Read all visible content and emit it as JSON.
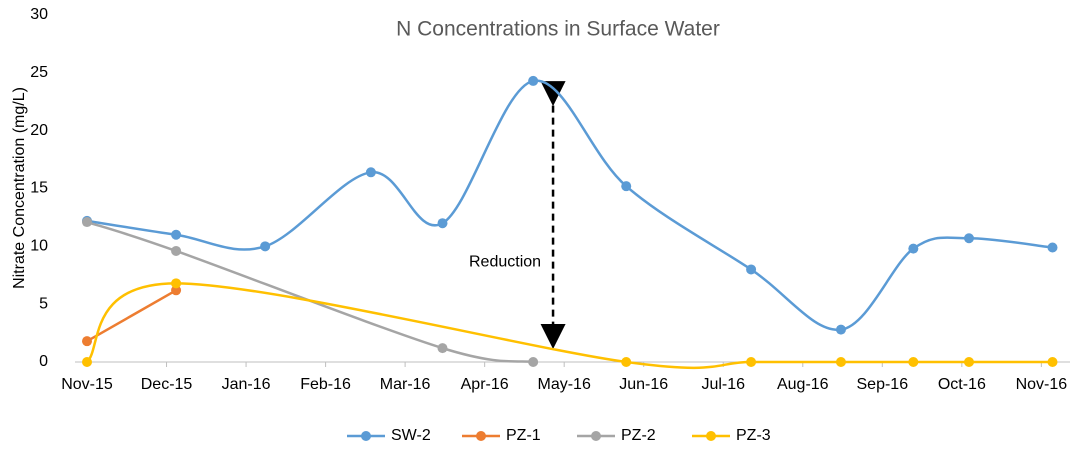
{
  "chart_data": {
    "type": "line",
    "title": "N Concentrations in Surface Water",
    "y_label": "Nitrate Concentration (mg/L)",
    "annotation": "Reduction",
    "xlim": [
      0,
      12.36
    ],
    "xticks": [
      {
        "value": 0,
        "label": "Nov-15"
      },
      {
        "value": 1,
        "label": "Dec-15"
      },
      {
        "value": 2,
        "label": "Jan-16"
      },
      {
        "value": 3,
        "label": "Feb-16"
      },
      {
        "value": 4,
        "label": "Mar-16"
      },
      {
        "value": 5,
        "label": "Apr-16"
      },
      {
        "value": 6,
        "label": "May-16"
      },
      {
        "value": 7,
        "label": "Jun-16"
      },
      {
        "value": 8,
        "label": "Jul-16"
      },
      {
        "value": 9,
        "label": "Aug-16"
      },
      {
        "value": 10,
        "label": "Sep-16"
      },
      {
        "value": 11,
        "label": "Oct-16"
      },
      {
        "value": 12,
        "label": "Nov-16"
      }
    ],
    "ylim": [
      0,
      30
    ],
    "yticks": [
      0,
      5,
      10,
      15,
      20,
      25,
      30
    ],
    "grid": false,
    "legend": "bottom",
    "series": [
      {
        "name": "SW-2",
        "color": "#5b9bd5",
        "x": [
          0,
          1.12,
          2.24,
          3.57,
          4.47,
          5.61,
          6.78,
          8.35,
          9.48,
          10.39,
          11.09,
          12.14
        ],
        "values": [
          12.2,
          11.0,
          10.0,
          16.4,
          12.0,
          24.3,
          15.2,
          8.0,
          2.8,
          9.8,
          10.7,
          9.9
        ]
      },
      {
        "name": "PZ-1",
        "color": "#ed7d31",
        "x": [
          0,
          1.12
        ],
        "values": [
          1.8,
          6.2
        ]
      },
      {
        "name": "PZ-2",
        "color": "#a5a5a5",
        "x": [
          0,
          1.12,
          4.47,
          5.61
        ],
        "values": [
          12.1,
          9.6,
          1.2,
          0
        ]
      },
      {
        "name": "PZ-3",
        "color": "#ffc000",
        "x": [
          0,
          1.12,
          6.78,
          8.35,
          9.48,
          10.39,
          11.09,
          12.14
        ],
        "values": [
          0,
          6.8,
          0,
          0,
          0,
          0,
          0,
          0
        ]
      }
    ]
  }
}
